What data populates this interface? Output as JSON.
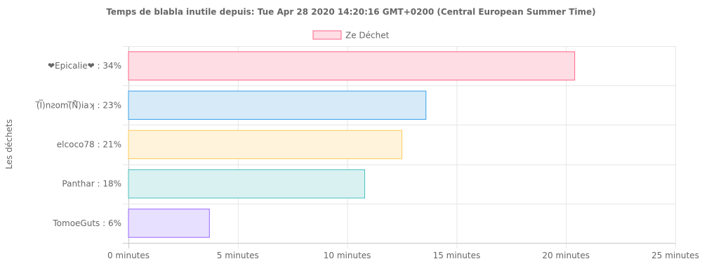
{
  "chart_data": {
    "type": "bar",
    "orientation": "horizontal",
    "title": "Temps de blabla inutile depuis: Tue Apr 28 2020 14:20:16 GMT+0200 (Central European Summer Time)",
    "ylabel": "Les déchets",
    "xlabel": "",
    "x_tick_suffix": " minutes",
    "xlim": [
      0,
      25
    ],
    "x_ticks": [
      0,
      5,
      10,
      15,
      20,
      25
    ],
    "grid": true,
    "legend_position": "top-center",
    "categories": [
      "❤Epicalie❤ : 34%",
      "(̅I̅)nƨom(̅Ñ̅)iaʞ : 23%",
      "elcoco78 : 21%",
      "Panthar : 18%",
      "TomoeGuts : 6%"
    ],
    "series": [
      {
        "name": "Ze Déchet",
        "values": [
          20.4,
          13.6,
          12.5,
          10.8,
          3.7
        ]
      }
    ],
    "bar_fill_colors": [
      "#ffdde4",
      "#d6eaf8",
      "#fff3dc",
      "#d9f1f1",
      "#e8e0ff"
    ],
    "bar_border_colors": [
      "#ff6384",
      "#36a2eb",
      "#ffce56",
      "#4bc0c0",
      "#9966ff"
    ],
    "legend_fill_color": "#ffdde4",
    "legend_border_color": "#ff6384"
  }
}
